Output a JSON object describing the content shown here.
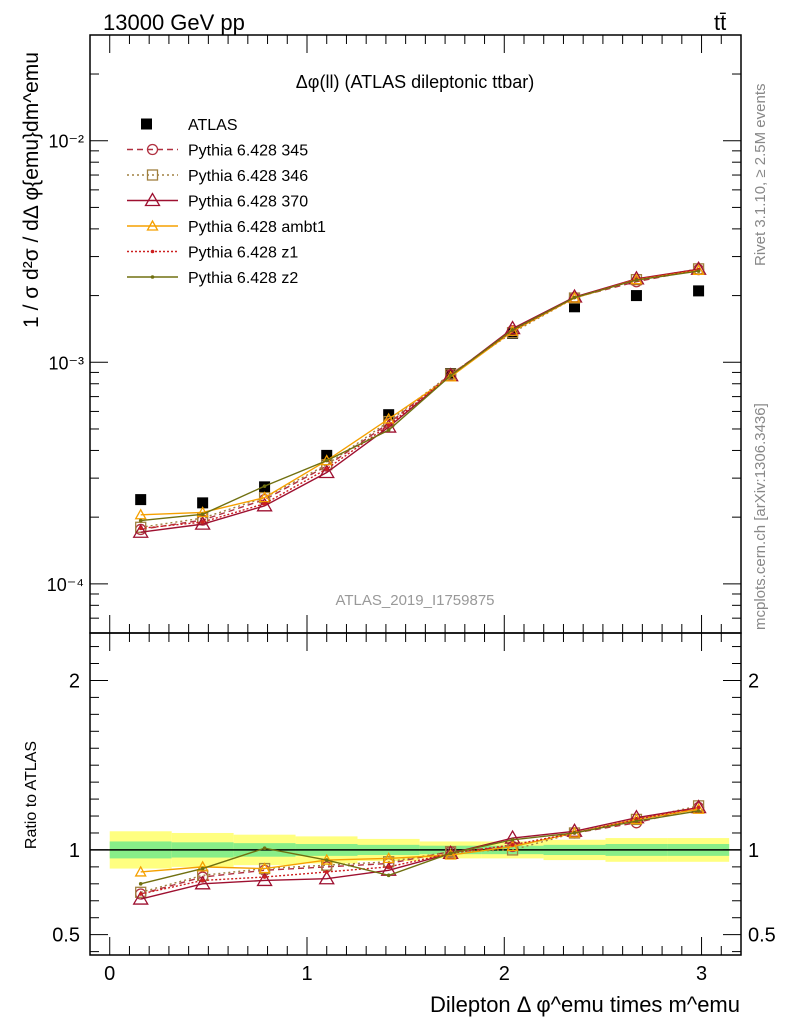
{
  "header": {
    "left": "13000 GeV pp",
    "right": "tt̄"
  },
  "side_labels": {
    "top": "Rivet 3.1.10, ≥ 2.5M events",
    "bottom": "mcplots.cern.ch [arXiv:1306.3436]"
  },
  "chart_data": [
    {
      "type": "line",
      "panel": "main",
      "title": "Δφ(ll) (ATLAS dileptonic ttbar)",
      "watermark": "ATLAS_2019_I1759875",
      "ylabel": "1 / σ  d²σ / dΔ φ{emu}dm^emu",
      "yscale": "log",
      "ylim": [
        6e-05,
        0.03
      ],
      "xlim": [
        -0.1,
        3.2
      ],
      "y_tick_labels": [
        "10⁻⁴",
        "10⁻³",
        "10⁻²"
      ],
      "legend_position": "top-left",
      "x": [
        0.157,
        0.471,
        0.785,
        1.1,
        1.414,
        1.728,
        2.042,
        2.356,
        2.67,
        2.985
      ],
      "series": [
        {
          "name": "ATLAS",
          "color": "#000000",
          "marker": "square",
          "values": [
            0.00024,
            0.000232,
            0.000274,
            0.00038,
            0.00058,
            0.00089,
            0.00135,
            0.00178,
            0.002,
            0.0021
          ]
        },
        {
          "name": "Pythia 6.428 345",
          "color": "#b03040",
          "marker": "circle",
          "dash": "6,4",
          "values": [
            0.000176,
            0.000194,
            0.00024,
            0.00034,
            0.00053,
            0.00088,
            0.00139,
            0.00196,
            0.00231,
            0.00262
          ]
        },
        {
          "name": "Pythia 6.428 346",
          "color": "#a08040",
          "marker": "square-open",
          "dash": "2,3",
          "values": [
            0.00018,
            0.000198,
            0.000245,
            0.000345,
            0.00054,
            0.000885,
            0.00136,
            0.00195,
            0.00236,
            0.00264
          ]
        },
        {
          "name": "Pythia 6.428 370",
          "color": "#9e1030",
          "marker": "triangle",
          "dash": "",
          "values": [
            0.000171,
            0.000186,
            0.000225,
            0.000318,
            0.00051,
            0.00087,
            0.00142,
            0.00197,
            0.00238,
            0.00263
          ]
        },
        {
          "name": "Pythia 6.428 ambt1",
          "color": "#f5a000",
          "marker": "triangle-small",
          "dash": "",
          "values": [
            0.000205,
            0.00021,
            0.000245,
            0.00036,
            0.000555,
            0.00086,
            0.00138,
            0.00195,
            0.00236,
            0.0026
          ]
        },
        {
          "name": "Pythia 6.428 z1",
          "color": "#cc2020",
          "marker": "dot",
          "dash": "2,2",
          "values": [
            0.000178,
            0.00019,
            0.00023,
            0.00033,
            0.00052,
            0.000875,
            0.00139,
            0.00196,
            0.00237,
            0.00262
          ]
        },
        {
          "name": "Pythia 6.428 z2",
          "color": "#707010",
          "marker": "dot",
          "dash": "",
          "values": [
            0.000193,
            0.000206,
            0.000276,
            0.00036,
            0.000494,
            0.00087,
            0.0014,
            0.00196,
            0.00235,
            0.00258
          ]
        }
      ]
    },
    {
      "type": "line",
      "panel": "ratio",
      "ylabel": "Ratio to ATLAS",
      "xlabel": "Dilepton Δ φ^emu times m^emu",
      "ylim": [
        0.38,
        2.28
      ],
      "xlim": [
        -0.1,
        3.2
      ],
      "y_tick_labels": [
        "0.5",
        "1",
        "2"
      ],
      "x_tick_labels": [
        "0",
        "1",
        "2",
        "3"
      ],
      "x": [
        0.157,
        0.471,
        0.785,
        1.1,
        1.414,
        1.728,
        2.042,
        2.356,
        2.67,
        2.985
      ],
      "bands": {
        "bins": [
          0.0,
          0.314,
          0.628,
          0.942,
          1.256,
          1.571,
          1.885,
          2.199,
          2.513,
          2.827,
          3.14
        ],
        "yellow_half": [
          0.11,
          0.1,
          0.09,
          0.08,
          0.065,
          0.05,
          0.05,
          0.06,
          0.07,
          0.07
        ],
        "green_half": [
          0.05,
          0.045,
          0.04,
          0.035,
          0.03,
          0.025,
          0.025,
          0.03,
          0.035,
          0.035
        ]
      },
      "series": [
        {
          "name": "Pythia 6.428 345",
          "values": [
            0.74,
            0.84,
            0.88,
            0.9,
            0.92,
            0.99,
            1.02,
            1.1,
            1.16,
            1.25
          ]
        },
        {
          "name": "Pythia 6.428 346",
          "values": [
            0.75,
            0.85,
            0.89,
            0.91,
            0.93,
            0.99,
            1.0,
            1.1,
            1.18,
            1.26
          ]
        },
        {
          "name": "Pythia 6.428 370",
          "values": [
            0.71,
            0.8,
            0.82,
            0.83,
            0.88,
            0.98,
            1.07,
            1.11,
            1.19,
            1.25
          ]
        },
        {
          "name": "Pythia 6.428 ambt1",
          "values": [
            0.87,
            0.9,
            0.89,
            0.94,
            0.95,
            0.97,
            1.02,
            1.1,
            1.18,
            1.24
          ]
        },
        {
          "name": "Pythia 6.428 z1",
          "values": [
            0.74,
            0.82,
            0.84,
            0.87,
            0.9,
            0.98,
            1.03,
            1.1,
            1.18,
            1.25
          ]
        },
        {
          "name": "Pythia 6.428 z2",
          "values": [
            0.8,
            0.89,
            1.01,
            0.94,
            0.85,
            0.98,
            1.06,
            1.1,
            1.17,
            1.23
          ]
        }
      ]
    }
  ]
}
